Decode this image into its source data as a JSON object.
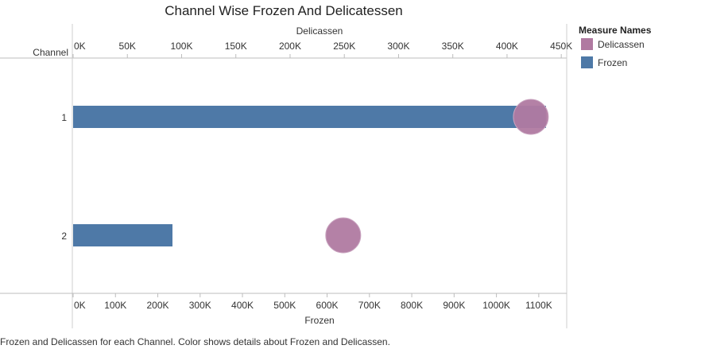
{
  "chart_data": {
    "type": "bar",
    "title": "Channel Wise Frozen And Delicatessen",
    "row_header": "Channel",
    "categories": [
      "1",
      "2"
    ],
    "series": [
      {
        "name": "Frozen",
        "values": [
          1116979,
          234671
        ],
        "color": "#4e79a7",
        "mark": "bar",
        "axis": "bottom"
      },
      {
        "name": "Delicassen",
        "values": [
          421955,
          248988
        ],
        "color": "#b07aa1",
        "mark": "circle",
        "axis": "top"
      }
    ],
    "x_bottom": {
      "label": "Frozen",
      "range": [
        0,
        1166000
      ],
      "ticks": [
        0,
        100000,
        200000,
        300000,
        400000,
        500000,
        600000,
        700000,
        800000,
        900000,
        1000000,
        1100000
      ],
      "tick_labels": [
        "0K",
        "100K",
        "200K",
        "300K",
        "400K",
        "500K",
        "600K",
        "700K",
        "800K",
        "900K",
        "1000K",
        "1100K"
      ]
    },
    "x_top": {
      "label": "Delicassen",
      "range": [
        0,
        455000
      ],
      "ticks": [
        0,
        50000,
        100000,
        150000,
        200000,
        250000,
        300000,
        350000,
        400000,
        450000
      ],
      "tick_labels": [
        "0K",
        "50K",
        "100K",
        "150K",
        "200K",
        "250K",
        "300K",
        "350K",
        "400K",
        "450K"
      ]
    },
    "legend": {
      "title": "Measure Names",
      "position": "right",
      "items": [
        {
          "label": "Delicassen",
          "color": "#b07aa1"
        },
        {
          "label": "Frozen",
          "color": "#4e79a7"
        }
      ]
    },
    "grid": false
  },
  "caption": "Frozen and Delicassen for each Channel.  Color shows details about Frozen and Delicassen."
}
